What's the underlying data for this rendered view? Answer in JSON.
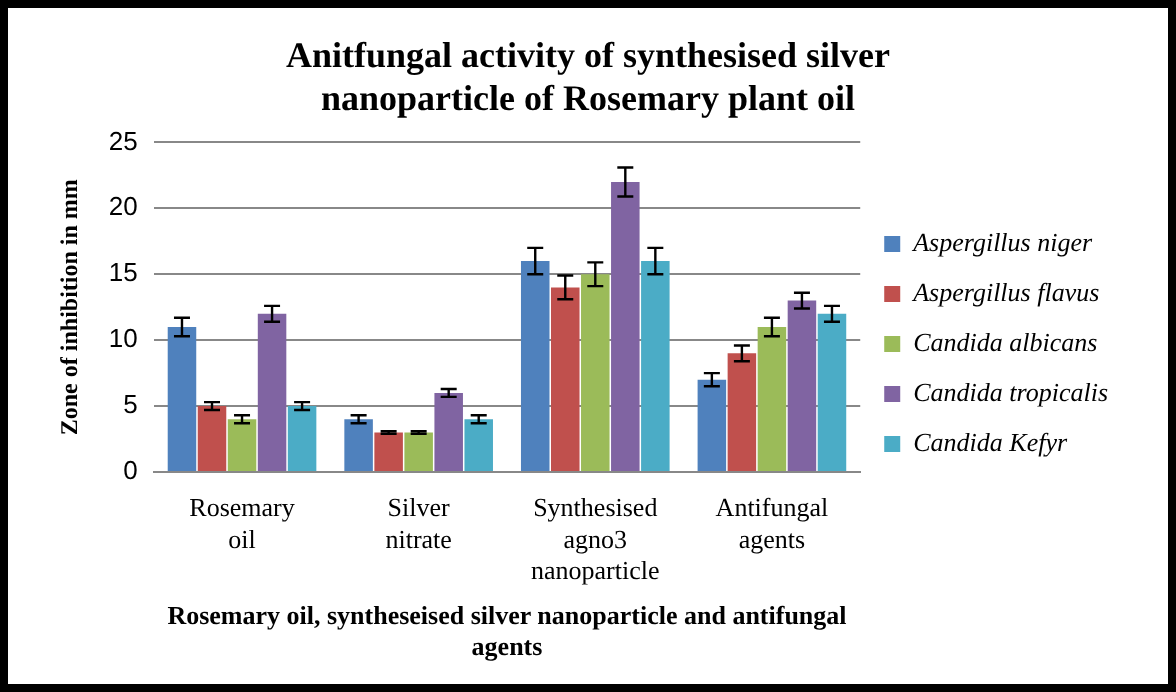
{
  "chart_data": {
    "type": "bar",
    "title": "Anitfungal activity of synthesised silver nanoparticle of Rosemary plant oil",
    "xlabel": "Rosemary oil, syntheseised silver nanoparticle and antifungal agents",
    "ylabel": "Zone of inhibition in mm",
    "categories": [
      "Rosemary oil",
      "Silver nitrate",
      "Synthesised agno3 nanoparticle",
      "Antifungal agents"
    ],
    "series": [
      {
        "name": "Aspergillus niger",
        "color": "#4f81bd",
        "values": [
          11,
          4,
          16,
          7
        ],
        "errors": [
          0.7,
          0.3,
          1,
          0.5
        ]
      },
      {
        "name": "Aspergillus flavus",
        "color": "#c0504d",
        "values": [
          5,
          3,
          14,
          9
        ],
        "errors": [
          0.3,
          0.1,
          0.9,
          0.6
        ]
      },
      {
        "name": "Candida albicans",
        "color": "#9bbb59",
        "values": [
          4,
          3,
          15,
          11
        ],
        "errors": [
          0.3,
          0.1,
          0.9,
          0.7
        ]
      },
      {
        "name": "Candida tropicalis",
        "color": "#8064a2",
        "values": [
          12,
          6,
          22,
          13
        ],
        "errors": [
          0.6,
          0.3,
          1.1,
          0.6
        ]
      },
      {
        "name": "Candida Kefyr",
        "color": "#4bacc6",
        "values": [
          5,
          4,
          16,
          12
        ],
        "errors": [
          0.3,
          0.3,
          1,
          0.6
        ]
      }
    ],
    "ylim": [
      0,
      25
    ],
    "yticks": [
      0,
      5,
      10,
      15,
      20,
      25
    ],
    "grid": "y",
    "legend": "right"
  }
}
